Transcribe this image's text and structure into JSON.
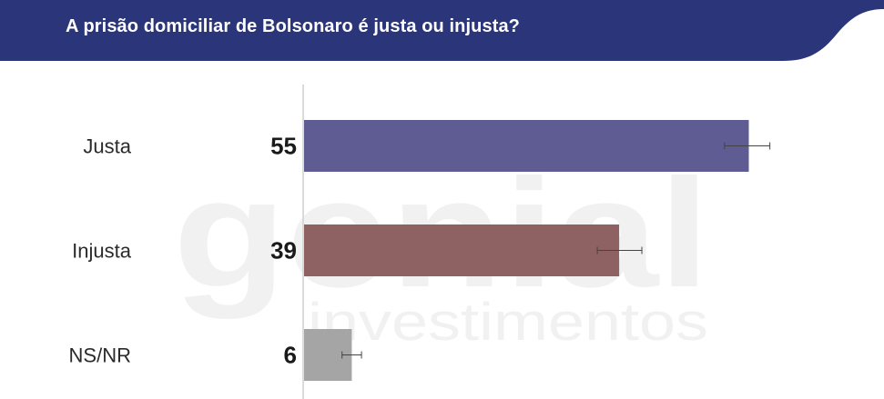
{
  "header": {
    "title": "A prisão domiciliar de Bolsonaro é justa ou injusta?",
    "background_color": "#2b3579"
  },
  "watermark": {
    "brand": "genial",
    "tagline": "investimentos"
  },
  "chart_data": {
    "type": "bar",
    "orientation": "horizontal",
    "title": "A prisão domiciliar de Bolsonaro é justa ou injusta?",
    "categories": [
      "Justa",
      "Injusta",
      "NS/NR"
    ],
    "values": [
      55,
      39,
      6
    ],
    "value_labels": [
      "55",
      "39",
      "6"
    ],
    "error_bars": [
      {
        "low": 52,
        "high": 57.6
      },
      {
        "low": 36.3,
        "high": 41.8
      },
      {
        "low": 4.8,
        "high": 7.2
      }
    ],
    "colors": [
      "#5f5b93",
      "#8e6262",
      "#a5a5a5"
    ],
    "xlim": [
      0,
      100
    ],
    "xlabel": "",
    "ylabel": "",
    "grid": false,
    "legend": "none"
  }
}
